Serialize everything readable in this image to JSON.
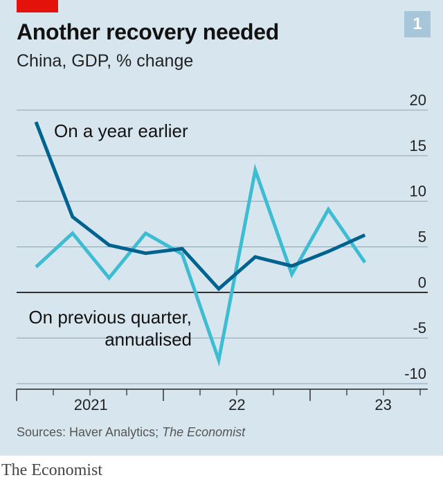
{
  "header": {
    "chart_number": "1",
    "title": "Another recovery needed",
    "subtitle": "China, GDP, % change"
  },
  "footer": {
    "source_prefix": "Sources: Haver Analytics; ",
    "source_italic": "The Economist",
    "brand": "The Economist"
  },
  "colors": {
    "background": "#d7e6ee",
    "gridline": "#8aa0ad",
    "zero_line": "#000000",
    "year_on_year": "#00628f",
    "quarter_on_quarter": "#3ebcd2",
    "brand_red": "#e3120b",
    "number_box": "#a7c6d9"
  },
  "chart_data": {
    "type": "line",
    "title": "Another recovery needed",
    "subtitle": "China, GDP, % change",
    "x": [
      "2021 Q1",
      "2021 Q2",
      "2021 Q3",
      "2021 Q4",
      "2022 Q1",
      "2022 Q2",
      "2022 Q3",
      "2022 Q4",
      "2023 Q1",
      "2023 Q2"
    ],
    "x_tick_labels": [
      {
        "label": "2021",
        "between": [
          "2021 Q2",
          "2021 Q3"
        ]
      },
      {
        "label": "22",
        "between": [
          "2022 Q2",
          "2022 Q3"
        ]
      },
      {
        "label": "23",
        "between": [
          "2023 Q2",
          "2023 Q3"
        ]
      }
    ],
    "y_ticks": [
      20,
      15,
      10,
      5,
      0,
      -5,
      -10
    ],
    "y_tick_labels": [
      "20",
      "15",
      "10",
      "5",
      "0",
      "-5",
      "-10"
    ],
    "ylim": [
      -10,
      20
    ],
    "y_axis_side": "right",
    "grid": "horizontal",
    "series": [
      {
        "name": "On a year earlier",
        "label_lines": [
          "On a year earlier"
        ],
        "values": [
          18.7,
          8.3,
          5.2,
          4.3,
          4.8,
          0.4,
          3.9,
          2.9,
          4.5,
          6.3
        ]
      },
      {
        "name": "On previous quarter, annualised",
        "label_lines": [
          "On previous quarter,",
          "annualised"
        ],
        "values": [
          2.8,
          6.5,
          1.6,
          6.5,
          4.2,
          -7.4,
          13.4,
          2.0,
          9.1,
          3.3
        ]
      }
    ]
  }
}
